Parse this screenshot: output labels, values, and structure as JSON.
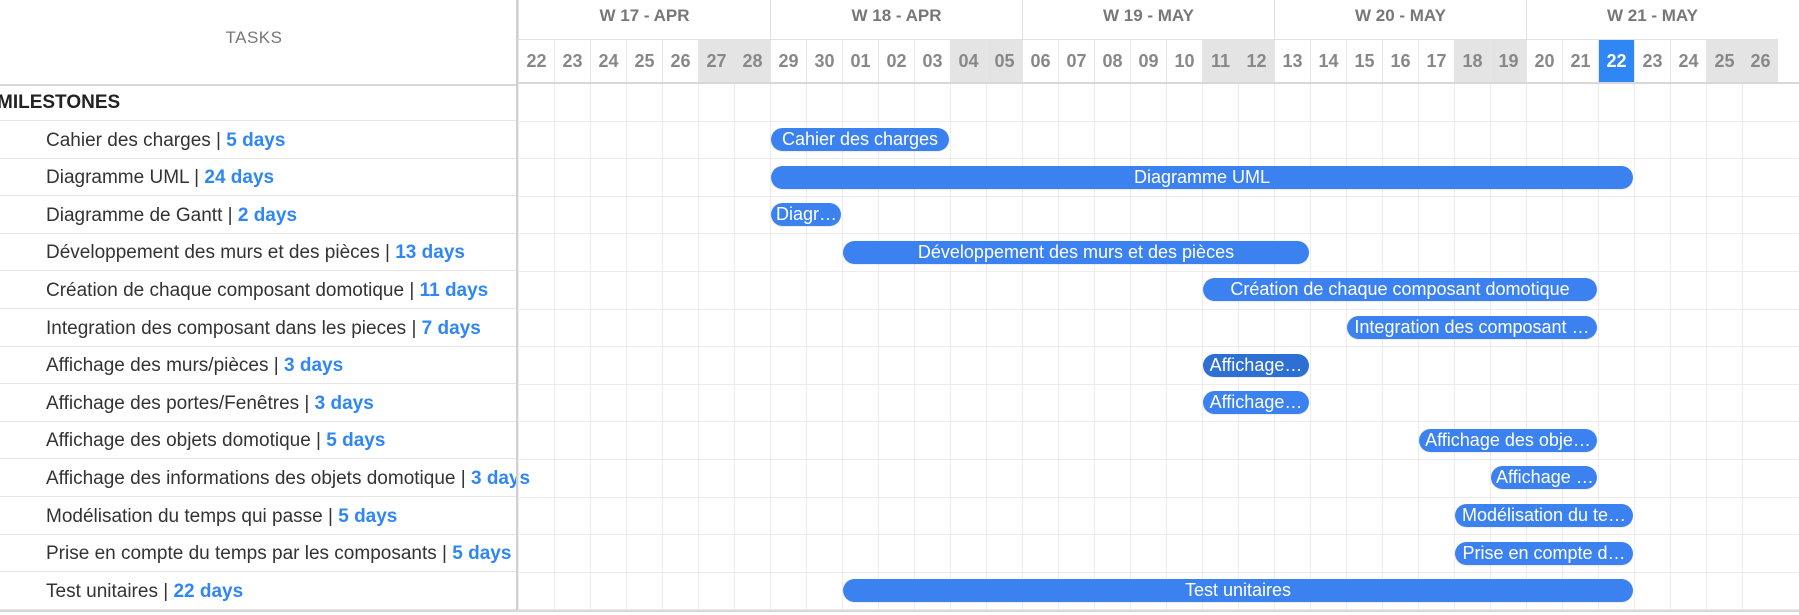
{
  "colors": {
    "accent": "#2f86f5",
    "bar": "#3b82f0",
    "bar_selected": "#2e6fd3",
    "weekend": "#e4e4e4",
    "grid": "#ececec"
  },
  "tasks_header": "TASKS",
  "group_label": "MILESTONES",
  "weeks": [
    {
      "label": "W 17 - APR",
      "span_days": 7
    },
    {
      "label": "W 18 - APR",
      "span_days": 7
    },
    {
      "label": "W 19 - MAY",
      "span_days": 7
    },
    {
      "label": "W 20 - MAY",
      "span_days": 7
    },
    {
      "label": "W 21 - MAY",
      "span_days": 7
    }
  ],
  "days": [
    {
      "label": "22",
      "weekend": false
    },
    {
      "label": "23",
      "weekend": false
    },
    {
      "label": "24",
      "weekend": false
    },
    {
      "label": "25",
      "weekend": false
    },
    {
      "label": "26",
      "weekend": false
    },
    {
      "label": "27",
      "weekend": true
    },
    {
      "label": "28",
      "weekend": true
    },
    {
      "label": "29",
      "weekend": false
    },
    {
      "label": "30",
      "weekend": false
    },
    {
      "label": "01",
      "weekend": false
    },
    {
      "label": "02",
      "weekend": false
    },
    {
      "label": "03",
      "weekend": false
    },
    {
      "label": "04",
      "weekend": true
    },
    {
      "label": "05",
      "weekend": true
    },
    {
      "label": "06",
      "weekend": false
    },
    {
      "label": "07",
      "weekend": false
    },
    {
      "label": "08",
      "weekend": false
    },
    {
      "label": "09",
      "weekend": false
    },
    {
      "label": "10",
      "weekend": false
    },
    {
      "label": "11",
      "weekend": true
    },
    {
      "label": "12",
      "weekend": true
    },
    {
      "label": "13",
      "weekend": false
    },
    {
      "label": "14",
      "weekend": false
    },
    {
      "label": "15",
      "weekend": false
    },
    {
      "label": "16",
      "weekend": false
    },
    {
      "label": "17",
      "weekend": false
    },
    {
      "label": "18",
      "weekend": true
    },
    {
      "label": "19",
      "weekend": true
    },
    {
      "label": "20",
      "weekend": false
    },
    {
      "label": "21",
      "weekend": false
    },
    {
      "label": "22",
      "weekend": false,
      "today": true
    },
    {
      "label": "23",
      "weekend": false
    },
    {
      "label": "24",
      "weekend": false
    },
    {
      "label": "25",
      "weekend": true
    },
    {
      "label": "26",
      "weekend": true
    }
  ],
  "tasks": [
    {
      "name": "Cahier des charges",
      "duration": "5 days",
      "bar_label": "Cahier des charges",
      "start_day": 7,
      "end_day": 12,
      "selected": false
    },
    {
      "name": "Diagramme UML",
      "duration": "24 days",
      "bar_label": "Diagramme UML",
      "start_day": 7,
      "end_day": 31,
      "selected": false
    },
    {
      "name": "Diagramme de Gantt",
      "duration": "2 days",
      "bar_label": "Diagr…",
      "start_day": 7,
      "end_day": 9,
      "selected": false
    },
    {
      "name": "Développement des murs et des pièces",
      "duration": "13 days",
      "bar_label": "Développement des murs et des pièces",
      "start_day": 9,
      "end_day": 22,
      "selected": false
    },
    {
      "name": "Création de chaque composant domotique",
      "duration": "11 days",
      "bar_label": "Création de chaque composant domotique",
      "start_day": 19,
      "end_day": 30,
      "selected": false
    },
    {
      "name": "Integration des composant dans les pieces",
      "duration": "7 days",
      "bar_label": "Integration des composant …",
      "start_day": 23,
      "end_day": 30,
      "selected": false
    },
    {
      "name": "Affichage des murs/pièces",
      "duration": "3 days",
      "bar_label": "Affichage…",
      "start_day": 19,
      "end_day": 22,
      "selected": true
    },
    {
      "name": "Affichage des portes/Fenêtres",
      "duration": "3 days",
      "bar_label": "Affichage…",
      "start_day": 19,
      "end_day": 22,
      "selected": false
    },
    {
      "name": "Affichage des objets domotique",
      "duration": "5 days",
      "bar_label": "Affichage des obje…",
      "start_day": 25,
      "end_day": 30,
      "selected": false
    },
    {
      "name": "Affichage des informations des objets domotique",
      "duration": "3 days",
      "bar_label": "Affichage …",
      "start_day": 27,
      "end_day": 30,
      "selected": false
    },
    {
      "name": "Modélisation du temps qui passe",
      "duration": "5 days",
      "bar_label": "Modélisation du te…",
      "start_day": 26,
      "end_day": 31,
      "selected": false
    },
    {
      "name": "Prise en compte du temps par les composants",
      "duration": "5 days",
      "bar_label": "Prise en compte d…",
      "start_day": 26,
      "end_day": 31,
      "selected": false
    },
    {
      "name": "Test unitaires",
      "duration": "22 days",
      "bar_label": "Test unitaires",
      "start_day": 9,
      "end_day": 31,
      "selected": false
    }
  ]
}
